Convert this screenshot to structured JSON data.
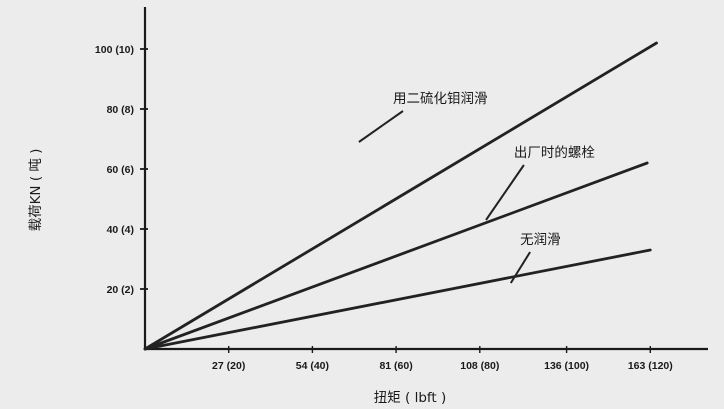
{
  "chart_data": {
    "type": "line",
    "title": "",
    "xlabel": "扭矩 ( lbft )",
    "ylabel": "载荷KN ( 吨 )",
    "xlim": [
      0,
      163
    ],
    "ylim": [
      0,
      115
    ],
    "x_ticks": [
      27,
      54,
      81,
      108,
      136,
      163
    ],
    "x_tick_labels": [
      "27 (20)",
      "54 (40)",
      "81 (60)",
      "108 (80)",
      "136 (100)",
      "163 (120)"
    ],
    "y_ticks": [
      20,
      40,
      60,
      80,
      100
    ],
    "y_tick_labels": [
      "20 (2)",
      "40 (4)",
      "60 (6)",
      "80 (8)",
      "100 (10)"
    ],
    "grid": false,
    "legend": "none",
    "series": [
      {
        "name": "用二硫化钼润滑",
        "x": [
          0,
          165
        ],
        "y": [
          0,
          102
        ],
        "label_x": 80,
        "label_y": 82,
        "anchor_x": 69,
        "anchor_y": 69
      },
      {
        "name": "出厂时的螺栓",
        "x": [
          0,
          162
        ],
        "y": [
          0,
          62
        ],
        "label_x": 119,
        "label_y": 64,
        "anchor_x": 110,
        "anchor_y": 43
      },
      {
        "name": "无润滑",
        "x": [
          0,
          163
        ],
        "y": [
          0,
          33
        ],
        "label_x": 121,
        "label_y": 35,
        "anchor_x": 118,
        "anchor_y": 22
      }
    ],
    "colors": {
      "background": "#ececec",
      "axis": "#1a1a1a",
      "line": "#222222",
      "text": "#1a1a1a"
    }
  }
}
